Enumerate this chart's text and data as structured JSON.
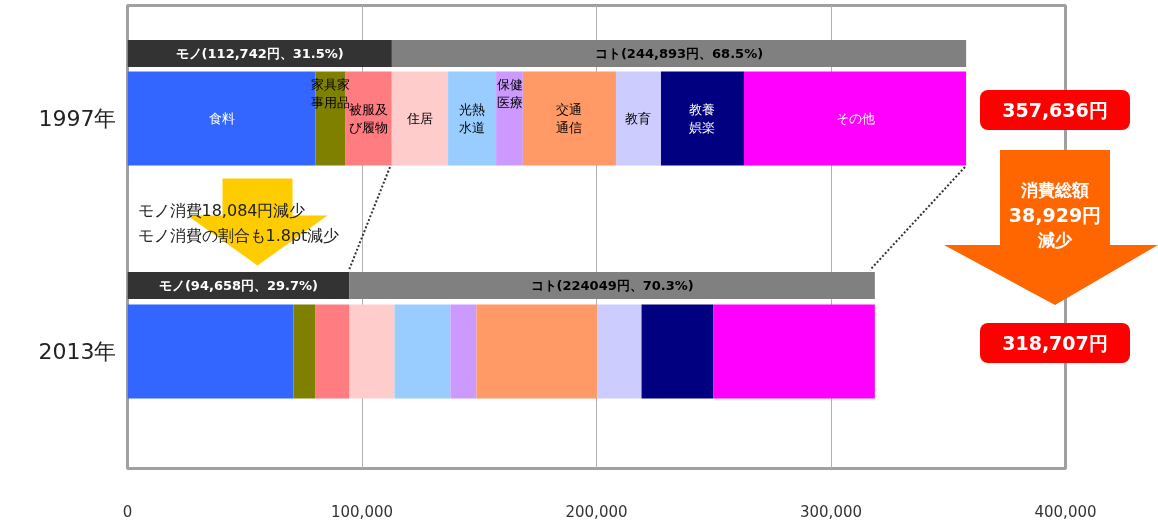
{
  "chart_data": {
    "type": "bar",
    "orientation": "horizontal",
    "stacked": true,
    "categories": [
      null,
      "1997年",
      null,
      "2013年"
    ],
    "series": [
      {
        "color": "#333333",
        "values": [
          112742,
          null,
          94658,
          null
        ],
        "value_labels": [
          "モノ(112,742円、31.5%)",
          null,
          "モノ(94,658円、29.7%)",
          null
        ]
      },
      {
        "color": "#808080",
        "values": [
          244893,
          null,
          224049,
          null
        ],
        "value_labels": [
          "コト(244,893円、68.5%)",
          null,
          "コト(224049円、70.3%)",
          null
        ]
      },
      {
        "name": "食料",
        "color": "#3366ff",
        "values": [
          null,
          80200,
          null,
          70800
        ]
      },
      {
        "name": "家具家事用品",
        "color": "#808000",
        "values": [
          null,
          12800,
          null,
          9400
        ]
      },
      {
        "name": "被服及び履物",
        "color": "#ff7c80",
        "values": [
          null,
          19700,
          null,
          14500
        ]
      },
      {
        "name": "住居",
        "color": "#ffcccc",
        "values": [
          null,
          24000,
          null,
          19200
        ]
      },
      {
        "name": "光熱水道",
        "color": "#99ccff",
        "values": [
          null,
          20500,
          null,
          23800
        ]
      },
      {
        "name": "保健医療",
        "color": "#cc99ff",
        "values": [
          null,
          11400,
          null,
          11100
        ]
      },
      {
        "name": "交通通信",
        "color": "#ff9966",
        "values": [
          null,
          39700,
          null,
          51600
        ]
      },
      {
        "name": "教育",
        "color": "#ccccff",
        "values": [
          null,
          19200,
          null,
          18800
        ]
      },
      {
        "name": "教養娯楽",
        "color": "#000080",
        "values": [
          null,
          35400,
          null,
          30700
        ]
      },
      {
        "name": "その他",
        "color": "#ff00ff",
        "values": [
          null,
          94700,
          null,
          68800
        ]
      }
    ],
    "xlim": [
      0,
      400000
    ],
    "xticks": [
      0,
      {
        "value": 100000,
        "label": "100,000"
      },
      {
        "value": 200000,
        "label": "200,000"
      },
      {
        "value": 300000,
        "label": "300,000"
      },
      {
        "value": 400000,
        "label": "400,000"
      }
    ],
    "grid": "x",
    "annotations": [
      "モノ消費18,084円減少",
      "モノ消費の割合も1.8pt減少",
      "357,636円",
      "消費総額",
      "38,929円",
      "減少",
      "318,707円"
    ]
  }
}
